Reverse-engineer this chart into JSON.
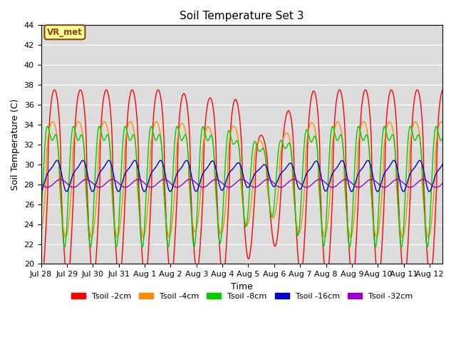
{
  "title": "Soil Temperature Set 3",
  "xlabel": "Time",
  "ylabel": "Soil Temperature (C)",
  "ylim": [
    20,
    44
  ],
  "yticks": [
    20,
    22,
    24,
    26,
    28,
    30,
    32,
    34,
    36,
    38,
    40,
    42,
    44
  ],
  "bg_color": "#dcdcdc",
  "fig_color": "#ffffff",
  "annotation_text": "VR_met",
  "annotation_bg": "#ffff99",
  "annotation_border": "#8B4513",
  "series_colors": [
    "#ff0000",
    "#ff8c00",
    "#00cc00",
    "#0000cc",
    "#9900cc"
  ],
  "series_labels": [
    "Tsoil -2cm",
    "Tsoil -4cm",
    "Tsoil -8cm",
    "Tsoil -16cm",
    "Tsoil -32cm"
  ],
  "num_days": 15.5,
  "period": 1.0,
  "xtick_labels": [
    "Jul 28",
    "Jul 29",
    "Jul 30",
    "Jul 31",
    "Aug 1",
    "Aug 2",
    "Aug 3",
    "Aug 4",
    "Aug 5",
    "Aug 6",
    "Aug 7",
    "Aug 8",
    "Aug 9",
    "Aug 10",
    "Aug 11",
    "Aug 12"
  ],
  "xtick_positions": [
    0,
    1,
    2,
    3,
    4,
    5,
    6,
    7,
    8,
    9,
    10,
    11,
    12,
    13,
    14,
    15
  ]
}
